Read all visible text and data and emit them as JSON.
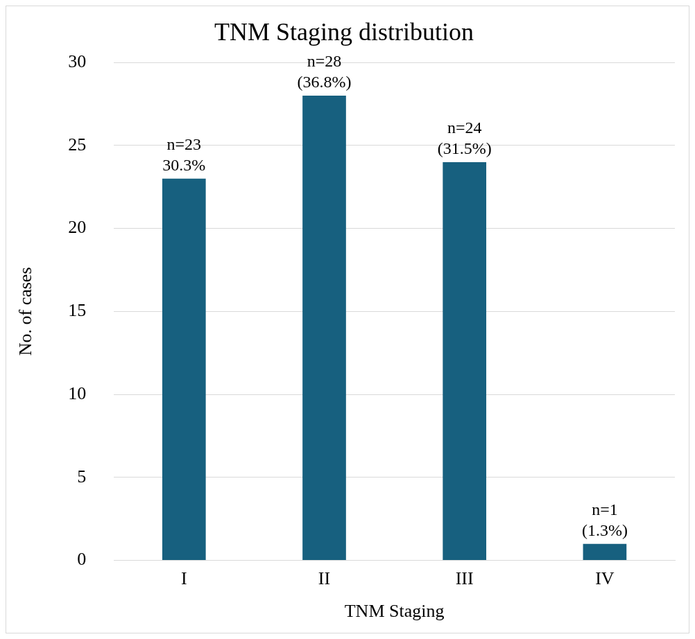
{
  "chart_data": {
    "type": "bar",
    "title": "TNM Staging distribution",
    "xlabel": "TNM Staging",
    "ylabel": "No. of cases",
    "categories": [
      "I",
      "II",
      "III",
      "IV"
    ],
    "values": [
      23,
      28,
      24,
      1
    ],
    "value_labels": [
      "n=23\n30.3%",
      "n=28\n(36.8%)",
      "n=24\n(31.5%)",
      "n=1\n(1.3%)"
    ],
    "color": "#17607f",
    "ylim": [
      0,
      30
    ],
    "yticks": [
      0,
      5,
      10,
      15,
      20,
      25,
      30
    ],
    "grid": "y",
    "legend": false
  }
}
